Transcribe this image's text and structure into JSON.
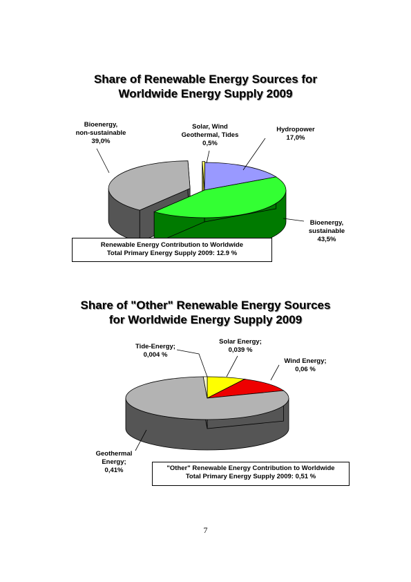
{
  "chart_data": [
    {
      "type": "pie",
      "title": [
        "Share of Renewable Energy Sources for",
        "Worldwide Energy Supply 2009"
      ],
      "slices": [
        {
          "name": "Hydropower",
          "label_lines": [
            "Hydropower",
            "17,0%"
          ],
          "value": 17.0,
          "color": "#9999ff",
          "side_color": "#5a5ab0"
        },
        {
          "name": "Bioenergy, sustainable",
          "label_lines": [
            "Bioenergy,",
            "sustainable",
            "43,5%"
          ],
          "value": 43.5,
          "color": "#33ff33",
          "side_color": "#007a00"
        },
        {
          "name": "Bioenergy, non-sustainable",
          "label_lines": [
            "Bioenergy,",
            "non-sustainable",
            "39,0%"
          ],
          "value": 39.0,
          "color": "#b3b3b3",
          "side_color": "#555555"
        },
        {
          "name": "Solar, Wind Geothermal, Tides",
          "label_lines": [
            "Solar, Wind",
            "Geothermal, Tides",
            "0,5%"
          ],
          "value": 0.5,
          "color": "#ffff66",
          "side_color": "#999922"
        }
      ],
      "note": [
        "Renewable Energy Contribution to Worldwide",
        "Total Primary Energy Supply 2009: 12.9 %"
      ]
    },
    {
      "type": "pie",
      "title": [
        "Share of \"Other\" Renewable Energy Sources",
        "for Worldwide Energy Supply 2009"
      ],
      "slices": [
        {
          "name": "Solar Energy",
          "label_lines": [
            "Solar Energy;",
            "0,039 %"
          ],
          "value": 0.039,
          "color": "#ffff00",
          "side_color": "#9a9a00"
        },
        {
          "name": "Wind Energy",
          "label_lines": [
            "Wind Energy;",
            "0,06 %"
          ],
          "value": 0.06,
          "color": "#ee0000",
          "side_color": "#8a0000"
        },
        {
          "name": "Geothermal Energy",
          "label_lines": [
            "Geothermal",
            "Energy;",
            "0,41%"
          ],
          "value": 0.41,
          "color": "#b3b3b3",
          "side_color": "#555555"
        },
        {
          "name": "Tide-Energy",
          "label_lines": [
            "Tide-Energy;",
            "0,004 %"
          ],
          "value": 0.004,
          "color": "#ffffcc",
          "side_color": "#a0a080"
        }
      ],
      "note": [
        "\"Other\" Renewable Energy Contribution to Worldwide",
        "Total Primary Energy Supply 2009: 0,51 %"
      ]
    }
  ],
  "page_number": "7"
}
